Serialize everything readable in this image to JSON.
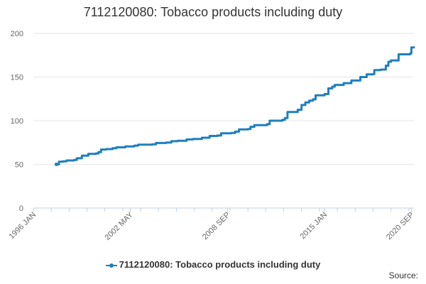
{
  "chart_data": {
    "type": "line",
    "title": "7112120080: Tobacco products including duty",
    "xlabel": "",
    "ylabel": "",
    "ylim": [
      0,
      200
    ],
    "yticks": [
      0,
      50,
      100,
      150,
      200
    ],
    "xlim": [
      "1996-01",
      "2020-11"
    ],
    "xticks": [
      {
        "date": "1996-01",
        "label": "1996 JAN"
      },
      {
        "date": "2002-05",
        "label": "2002 MAY"
      },
      {
        "date": "2008-09",
        "label": "2008 SEP"
      },
      {
        "date": "2015-01",
        "label": "2015 JAN"
      },
      {
        "date": "2020-09",
        "label": "2020 SEP"
      }
    ],
    "grid": "horizontal",
    "legend_position": "bottom",
    "series": [
      {
        "name": "7112120080: Tobacco products including duty",
        "color": "#1f7fbf",
        "points": [
          [
            "1997-07",
            50
          ],
          [
            "1997-09",
            53
          ],
          [
            "1997-12",
            53.5
          ],
          [
            "1998-03",
            54.5
          ],
          [
            "1998-09",
            55
          ],
          [
            "1998-11",
            57
          ],
          [
            "1999-03",
            60
          ],
          [
            "1999-08",
            62
          ],
          [
            "2000-02",
            62.5
          ],
          [
            "2000-04",
            64
          ],
          [
            "2000-06",
            67
          ],
          [
            "2000-10",
            67.5
          ],
          [
            "2001-03",
            68.5
          ],
          [
            "2001-06",
            69.5
          ],
          [
            "2002-01",
            70.5
          ],
          [
            "2002-08",
            71.5
          ],
          [
            "2002-11",
            72.5
          ],
          [
            "2003-10",
            73
          ],
          [
            "2004-01",
            74.5
          ],
          [
            "2004-09",
            75
          ],
          [
            "2005-01",
            76.5
          ],
          [
            "2005-06",
            77
          ],
          [
            "2006-01",
            78.5
          ],
          [
            "2006-06",
            79
          ],
          [
            "2007-01",
            80.5
          ],
          [
            "2007-07",
            82.5
          ],
          [
            "2008-01",
            83
          ],
          [
            "2008-04",
            85.5
          ],
          [
            "2008-12",
            86
          ],
          [
            "2009-03",
            87.5
          ],
          [
            "2009-06",
            90
          ],
          [
            "2010-01",
            90.5
          ],
          [
            "2010-03",
            93
          ],
          [
            "2010-06",
            95
          ],
          [
            "2011-04",
            96
          ],
          [
            "2011-06",
            100
          ],
          [
            "2012-04",
            101
          ],
          [
            "2012-06",
            103
          ],
          [
            "2012-08",
            110
          ],
          [
            "2013-04",
            112.5
          ],
          [
            "2013-07",
            118
          ],
          [
            "2013-10",
            121
          ],
          [
            "2014-01",
            123
          ],
          [
            "2014-04",
            124.5
          ],
          [
            "2014-06",
            129
          ],
          [
            "2015-01",
            130.5
          ],
          [
            "2015-04",
            137
          ],
          [
            "2015-07",
            139
          ],
          [
            "2015-09",
            141
          ],
          [
            "2016-04",
            143
          ],
          [
            "2016-10",
            146
          ],
          [
            "2017-05",
            150
          ],
          [
            "2017-10",
            153
          ],
          [
            "2018-03",
            153.5
          ],
          [
            "2018-04",
            158
          ],
          [
            "2018-09",
            158.5
          ],
          [
            "2019-01",
            163
          ],
          [
            "2019-03",
            167.5
          ],
          [
            "2019-05",
            169
          ],
          [
            "2019-11",
            176
          ],
          [
            "2020-08",
            177
          ],
          [
            "2020-09",
            184
          ],
          [
            "2020-11",
            184
          ]
        ]
      }
    ]
  },
  "legend": {
    "label": "7112120080: Tobacco products including duty"
  },
  "footer": {
    "source_label": "Source:"
  },
  "colors": {
    "series": "#1f7fbf",
    "grid": "#e6e6e6",
    "axis": "#c0d0e0",
    "tick_text": "#666666",
    "title_text": "#333333"
  }
}
